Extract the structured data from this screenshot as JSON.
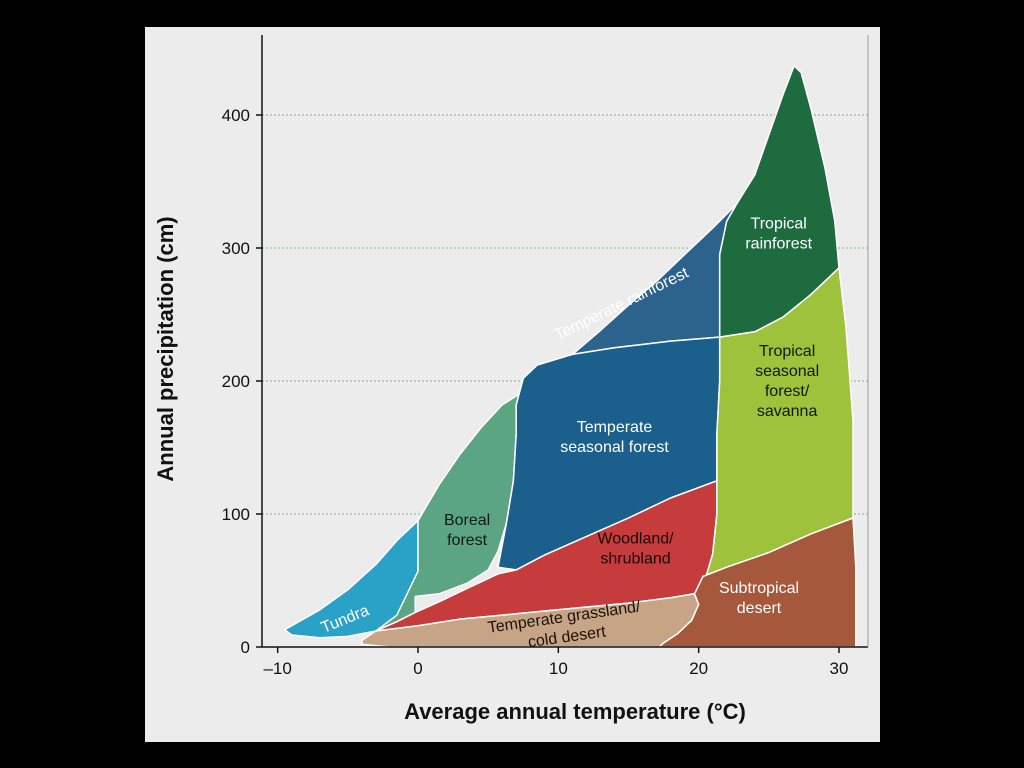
{
  "chart_data": {
    "type": "area",
    "title": "",
    "xlabel": "Average annual temperature (°C)",
    "ylabel": "Annual precipitation (cm)",
    "xlim": [
      -11,
      32
    ],
    "ylim": [
      0,
      450
    ],
    "xticks": [
      -10,
      0,
      10,
      20,
      30
    ],
    "xtick_labels": [
      "–10",
      "0",
      "10",
      "20",
      "30"
    ],
    "yticks": [
      0,
      100,
      200,
      300,
      400
    ],
    "grid": "horizontal-dotted",
    "regions": [
      {
        "name": "Tundra",
        "color": "#2aa2c7",
        "label_color": "#ffffff",
        "label_lines": [
          "Tundra"
        ],
        "label_pos": [
          -5.2,
          21
        ],
        "label_rotate": -22,
        "polygon": [
          [
            -9.5,
            13
          ],
          [
            -9,
            9
          ],
          [
            -7,
            7
          ],
          [
            -5,
            8
          ],
          [
            -3,
            12
          ],
          [
            -1.5,
            19
          ],
          [
            -0.2,
            26
          ],
          [
            -0.2,
            38
          ],
          [
            0,
            57
          ],
          [
            0,
            95
          ],
          [
            -1.5,
            80
          ],
          [
            -3,
            62
          ],
          [
            -5,
            43
          ],
          [
            -7,
            28
          ],
          [
            -8.5,
            19
          ]
        ]
      },
      {
        "name": "Boreal forest",
        "color": "#5ba585",
        "label_color": "#0d1b14",
        "label_lines": [
          "Boreal",
          "forest"
        ],
        "label_pos": [
          3.5,
          88
        ],
        "label_rotate": 0,
        "polygon": [
          [
            0,
            95
          ],
          [
            1.5,
            122
          ],
          [
            3,
            145
          ],
          [
            4.5,
            165
          ],
          [
            6,
            182
          ],
          [
            7.5,
            192
          ],
          [
            7,
            182
          ],
          [
            7,
            160
          ],
          [
            6.8,
            125
          ],
          [
            6.3,
            93
          ],
          [
            5.7,
            72
          ],
          [
            5,
            58
          ],
          [
            3.5,
            48
          ],
          [
            1.5,
            40
          ],
          [
            -0.2,
            38
          ],
          [
            -0.2,
            26
          ],
          [
            -1.5,
            19
          ],
          [
            -3,
            12
          ],
          [
            -1.5,
            24
          ],
          [
            0,
            57
          ]
        ]
      },
      {
        "name": "Temperate rainforest",
        "color": "#2b638c",
        "label_color": "#ffffff",
        "label_lines": [
          "Temperate rainforest"
        ],
        "label_pos": [
          14.5,
          258
        ],
        "label_rotate": -26,
        "polygon": [
          [
            7.5,
            192
          ],
          [
            9,
            205
          ],
          [
            11,
            220
          ],
          [
            13,
            238
          ],
          [
            15,
            257
          ],
          [
            17,
            275
          ],
          [
            19,
            295
          ],
          [
            21,
            315
          ],
          [
            22.7,
            333
          ],
          [
            22,
            320
          ],
          [
            21.5,
            295
          ],
          [
            21.5,
            255
          ],
          [
            21.5,
            233
          ],
          [
            18,
            230
          ],
          [
            14,
            225
          ],
          [
            11,
            220
          ],
          [
            8.5,
            212
          ],
          [
            7.5,
            202
          ],
          [
            7,
            182
          ]
        ]
      },
      {
        "name": "Temperate seasonal forest",
        "color": "#1b5f8c",
        "label_color": "#ffffff",
        "label_lines": [
          "Temperate",
          "seasonal forest"
        ],
        "label_pos": [
          14,
          158
        ],
        "label_rotate": 0,
        "polygon": [
          [
            7,
            182
          ],
          [
            7.5,
            202
          ],
          [
            8.5,
            212
          ],
          [
            11,
            220
          ],
          [
            14,
            225
          ],
          [
            18,
            230
          ],
          [
            21.5,
            233
          ],
          [
            21.5,
            200
          ],
          [
            21.3,
            160
          ],
          [
            21.3,
            125
          ],
          [
            18,
            112
          ],
          [
            15,
            97
          ],
          [
            12,
            83
          ],
          [
            9,
            69
          ],
          [
            7,
            58
          ],
          [
            5.7,
            60
          ],
          [
            6.3,
            93
          ],
          [
            6.8,
            125
          ],
          [
            7,
            160
          ]
        ]
      },
      {
        "name": "Woodland/shrubland",
        "color": "#c63b3b",
        "label_color": "#1a0606",
        "label_lines": [
          "Woodland/",
          "shrubland"
        ],
        "label_pos": [
          15.5,
          74
        ],
        "label_rotate": 0,
        "polygon": [
          [
            -3,
            12
          ],
          [
            -1.5,
            19
          ],
          [
            -0.2,
            26
          ],
          [
            1.5,
            34
          ],
          [
            3.5,
            44
          ],
          [
            5.7,
            55
          ],
          [
            7,
            58
          ],
          [
            9,
            69
          ],
          [
            12,
            83
          ],
          [
            15,
            97
          ],
          [
            18,
            112
          ],
          [
            21.3,
            125
          ],
          [
            21.3,
            100
          ],
          [
            21,
            70
          ],
          [
            20.5,
            52
          ],
          [
            19.7,
            40
          ],
          [
            18,
            37
          ],
          [
            15,
            33
          ],
          [
            11,
            29
          ],
          [
            7,
            25
          ],
          [
            3,
            21
          ],
          [
            0,
            16
          ]
        ]
      },
      {
        "name": "Temperate grassland/cold desert",
        "color": "#c8a486",
        "label_color": "#1a1208",
        "label_lines": [
          "Temperate grassland/",
          "cold desert"
        ],
        "label_pos": [
          10.5,
          15
        ],
        "label_rotate": -8,
        "polygon": [
          [
            -4,
            5
          ],
          [
            -3,
            12
          ],
          [
            0,
            16
          ],
          [
            3,
            21
          ],
          [
            7,
            25
          ],
          [
            11,
            29
          ],
          [
            15,
            33
          ],
          [
            18,
            37
          ],
          [
            19.7,
            40
          ],
          [
            20,
            32
          ],
          [
            19.5,
            20
          ],
          [
            18.5,
            10
          ],
          [
            17.5,
            3
          ],
          [
            17.2,
            0
          ],
          [
            -2,
            0
          ],
          [
            -4,
            2
          ]
        ]
      },
      {
        "name": "Tropical rainforest",
        "color": "#1d6b3e",
        "label_color": "#ffffff",
        "label_lines": [
          "Tropical",
          "rainforest"
        ],
        "label_pos": [
          25.7,
          311
        ],
        "label_rotate": 0,
        "polygon": [
          [
            22.7,
            333
          ],
          [
            24,
            355
          ],
          [
            25,
            385
          ],
          [
            26,
            415
          ],
          [
            26.8,
            437
          ],
          [
            27.3,
            432
          ],
          [
            28,
            405
          ],
          [
            29,
            360
          ],
          [
            29.7,
            320
          ],
          [
            30,
            285
          ],
          [
            28,
            265
          ],
          [
            26,
            248
          ],
          [
            24,
            237
          ],
          [
            21.5,
            233
          ],
          [
            21.5,
            255
          ],
          [
            21.5,
            295
          ],
          [
            22,
            320
          ]
        ]
      },
      {
        "name": "Tropical seasonal forest/savanna",
        "color": "#9ec23c",
        "label_color": "#0f1a05",
        "label_lines": [
          "Tropical",
          "seasonal",
          "forest/",
          "savanna"
        ],
        "label_pos": [
          26.3,
          200
        ],
        "label_rotate": 0,
        "polygon": [
          [
            21.5,
            233
          ],
          [
            24,
            237
          ],
          [
            26,
            248
          ],
          [
            28,
            265
          ],
          [
            30,
            285
          ],
          [
            30.5,
            240
          ],
          [
            31,
            170
          ],
          [
            31,
            97
          ],
          [
            28,
            85
          ],
          [
            25,
            71
          ],
          [
            22,
            60
          ],
          [
            20.3,
            53
          ],
          [
            20.5,
            52
          ],
          [
            21,
            70
          ],
          [
            21.3,
            100
          ],
          [
            21.3,
            125
          ],
          [
            21.3,
            160
          ],
          [
            21.5,
            200
          ]
        ]
      },
      {
        "name": "Subtropical desert",
        "color": "#a5583b",
        "label_color": "#ffffff",
        "label_lines": [
          "Subtropical",
          "desert"
        ],
        "label_pos": [
          24.3,
          37
        ],
        "label_rotate": 0,
        "polygon": [
          [
            17.2,
            0
          ],
          [
            31.2,
            0
          ],
          [
            31.2,
            60
          ],
          [
            31,
            97
          ],
          [
            28,
            85
          ],
          [
            25,
            71
          ],
          [
            22,
            60
          ],
          [
            20.3,
            53
          ],
          [
            19.7,
            40
          ],
          [
            20,
            32
          ],
          [
            19.5,
            20
          ],
          [
            18.5,
            10
          ],
          [
            17.5,
            3
          ]
        ]
      }
    ]
  }
}
